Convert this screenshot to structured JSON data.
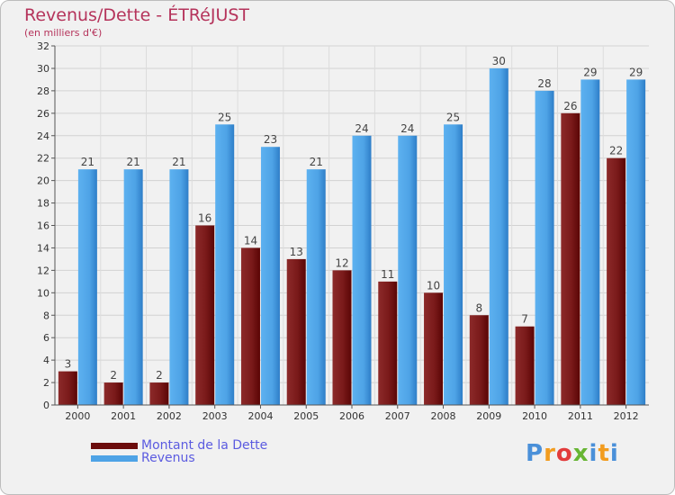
{
  "header": {
    "title": "Revenus/Dette - ÉTRéJUST",
    "subtitle": "(en milliers d'€)"
  },
  "legend": {
    "items": [
      {
        "label": "Montant de la Dette",
        "color": "#6b0c0c"
      },
      {
        "label": "Revenus",
        "color": "#4ea3e6"
      }
    ]
  },
  "logo": {
    "text": "Proxiti",
    "letter_colors": [
      "#4a90d9",
      "#f29c1f",
      "#e23b3b",
      "#67b533",
      "#4a90d9",
      "#f29c1f",
      "#4a90d9"
    ]
  },
  "chart_data": {
    "type": "bar",
    "categories": [
      "2000",
      "2001",
      "2002",
      "2003",
      "2004",
      "2005",
      "2006",
      "2007",
      "2008",
      "2009",
      "2010",
      "2011",
      "2012"
    ],
    "series": [
      {
        "name": "Montant de la Dette",
        "values": [
          3,
          2,
          2,
          16,
          14,
          13,
          12,
          11,
          10,
          8,
          7,
          26,
          22
        ],
        "color": "#7a1a1a"
      },
      {
        "name": "Revenus",
        "values": [
          21,
          21,
          21,
          25,
          23,
          21,
          24,
          24,
          25,
          30,
          28,
          29,
          29
        ],
        "color": "#4ea3e6"
      }
    ],
    "title": "Revenus/Dette - ÉTRéJUST",
    "ylabel": "(en milliers d'€)",
    "ylim": [
      0,
      32
    ],
    "yticks": [
      0,
      2,
      4,
      6,
      8,
      10,
      12,
      14,
      16,
      18,
      20,
      22,
      24,
      26,
      28,
      30,
      32
    ],
    "grid": true,
    "legend_position": "bottom-left"
  }
}
